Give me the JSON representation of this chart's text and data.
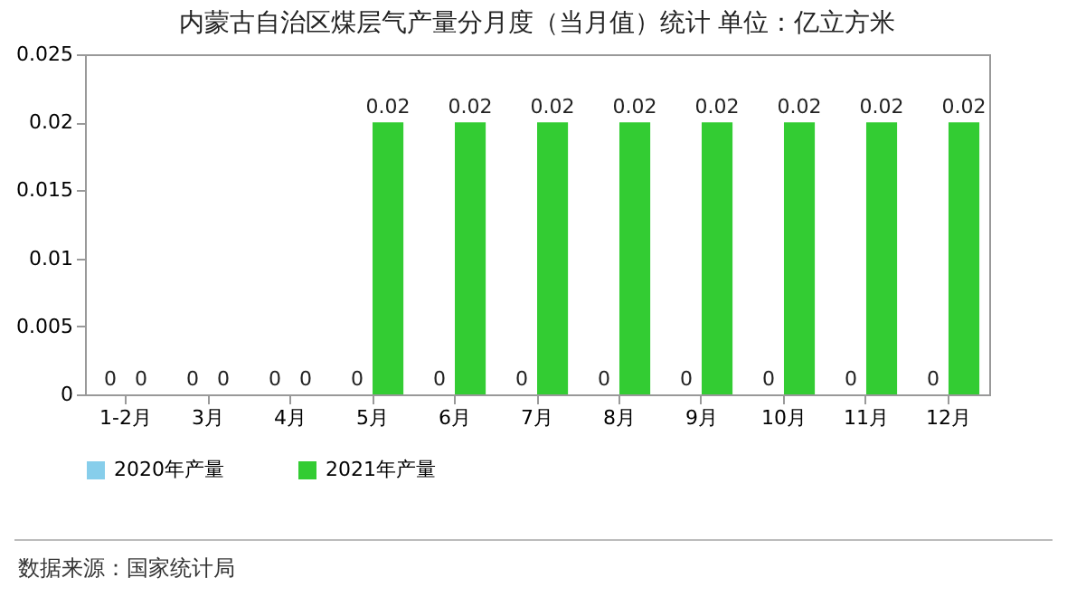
{
  "chart_data": {
    "type": "bar",
    "title": "内蒙古自治区煤层气产量分月度（当月值）统计  单位：亿立方米",
    "categories": [
      "1-2月",
      "3月",
      "4月",
      "5月",
      "6月",
      "7月",
      "8月",
      "9月",
      "10月",
      "11月",
      "12月"
    ],
    "series": [
      {
        "name": "2020年产量",
        "color": "#87ceeb",
        "values": [
          0,
          0,
          0,
          0,
          0,
          0,
          0,
          0,
          0,
          0,
          0
        ]
      },
      {
        "name": "2021年产量",
        "color": "#33cc33",
        "values": [
          0,
          0,
          0,
          0.02,
          0.02,
          0.02,
          0.02,
          0.02,
          0.02,
          0.02,
          0.02
        ]
      }
    ],
    "ylim": [
      0,
      0.025
    ],
    "yticks": [
      0,
      0.005,
      0.01,
      0.015,
      0.02,
      0.025
    ],
    "grid": false,
    "legend": "bottom",
    "data_labels": true,
    "annotations": [
      "数据来源：国家统计局"
    ]
  }
}
